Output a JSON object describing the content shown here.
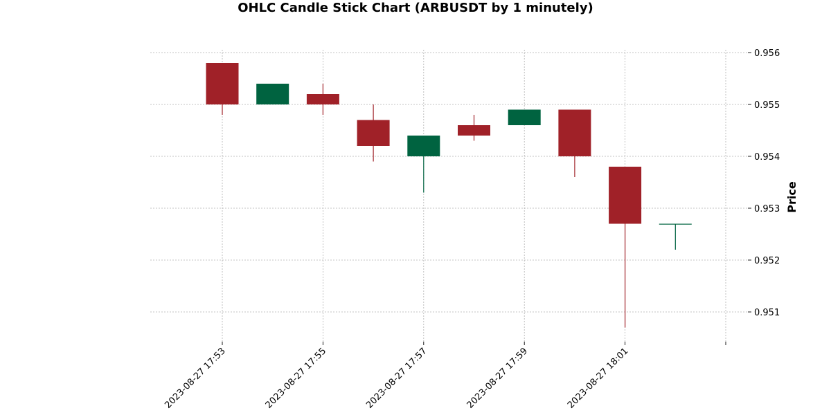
{
  "chart_data": {
    "type": "candlestick",
    "title": "OHLC Candle Stick Chart (ARBUSDT by 1 minutely)",
    "xlabel": "",
    "ylabel": "Price",
    "ylim": [
      0.9505,
      0.956
    ],
    "y_ticks": [
      "0.951",
      "0.952",
      "0.953",
      "0.954",
      "0.955",
      "0.956"
    ],
    "x_ticks": [
      "2023-08-27 17:53",
      "2023-08-27 17:55",
      "2023-08-27 17:57",
      "2023-08-27 17:59",
      "2023-08-27 18:01"
    ],
    "grid": true,
    "colors": {
      "up": "#006340",
      "down": "#a02128",
      "grid": "#b0b0b0"
    },
    "candles": [
      {
        "time": "2023-08-27 17:53",
        "open": 0.9558,
        "high": 0.9558,
        "low": 0.9548,
        "close": 0.955
      },
      {
        "time": "2023-08-27 17:54",
        "open": 0.955,
        "high": 0.9554,
        "low": 0.955,
        "close": 0.9554
      },
      {
        "time": "2023-08-27 17:55",
        "open": 0.9552,
        "high": 0.9554,
        "low": 0.9548,
        "close": 0.955
      },
      {
        "time": "2023-08-27 17:56",
        "open": 0.9547,
        "high": 0.955,
        "low": 0.9539,
        "close": 0.9542
      },
      {
        "time": "2023-08-27 17:57",
        "open": 0.954,
        "high": 0.9544,
        "low": 0.9533,
        "close": 0.9544
      },
      {
        "time": "2023-08-27 17:58",
        "open": 0.9546,
        "high": 0.9548,
        "low": 0.9543,
        "close": 0.9544
      },
      {
        "time": "2023-08-27 17:59",
        "open": 0.9546,
        "high": 0.9549,
        "low": 0.9546,
        "close": 0.9549
      },
      {
        "time": "2023-08-27 18:00",
        "open": 0.9549,
        "high": 0.9549,
        "low": 0.9536,
        "close": 0.954
      },
      {
        "time": "2023-08-27 18:01",
        "open": 0.9538,
        "high": 0.9538,
        "low": 0.9507,
        "close": 0.9527
      },
      {
        "time": "2023-08-27 18:02",
        "open": 0.9527,
        "high": 0.9527,
        "low": 0.9522,
        "close": 0.9527
      }
    ]
  }
}
